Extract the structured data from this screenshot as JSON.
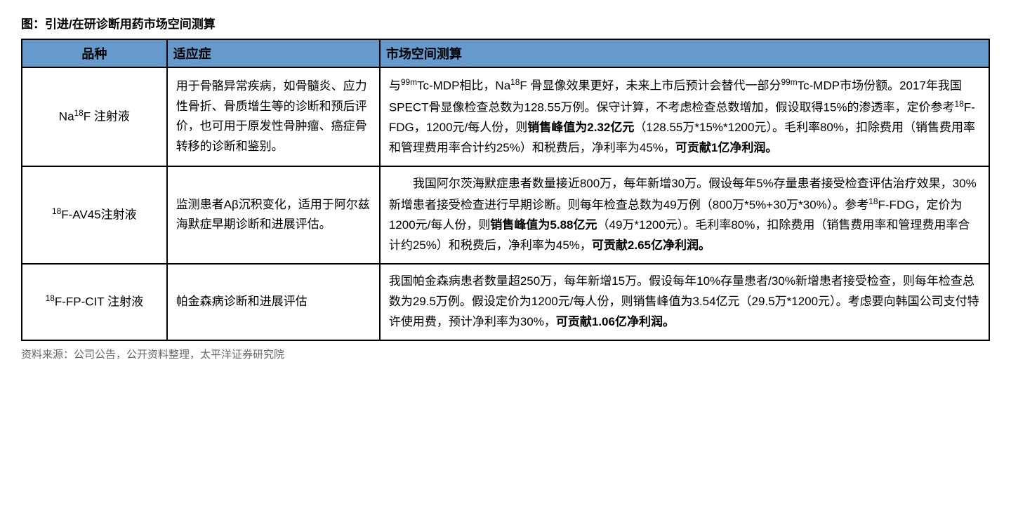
{
  "title": "图：引进/在研诊断用药市场空间测算",
  "header_bg_color": "#6699cc",
  "border_color": "#000000",
  "columns": {
    "product": "品种",
    "indication": "适应症",
    "market": "市场空间测算"
  },
  "rows": [
    {
      "indication": "用于骨骼异常疾病，如骨髓炎、应力性骨折、骨质增生等的诊断和预后评价，也可用于原发性骨肿瘤、癌症骨转移的诊断和鉴别。",
      "market_part1": "Tc-MDP相比，Na",
      "market_part2": "F 骨显像效果更好，未来上市后预计会替代一部分",
      "market_part3": "Tc-MDP市场份额。2017年我国SPECT骨显像检查总数为128.55万例。保守计算，不考虑检查总数增加，假设取得15%的渗透率，定价参考",
      "market_part4": "F-FDG，1200元/每人份，则",
      "market_bold1": "销售峰值为2.32亿元",
      "market_part5": "（128.55万*15%*1200元）。毛利率80%，扣除费用（销售费用率和管理费用率合计约25%）和税费后，净利率为45%，",
      "market_bold2": "可贡献1亿净利润。"
    },
    {
      "indication": "监测患者Aβ沉积变化，适用于阿尔兹海默症早期诊断和进展评估。",
      "market_part1": "我国阿尔茨海默症患者数量接近800万，每年新增30万。假设每年5%存量患者接受检查评估治疗效果，30%新增患者接受检查进行早期诊断。则每年检查总数为49万例（800万*5%+30万*30%）。参考",
      "market_part2": "F-FDG，定价为1200元/每人份，则",
      "market_bold1": "销售峰值为5.88亿元",
      "market_part3": "（49万*1200元）。毛利率80%，扣除费用（销售费用率和管理费用率合计约25%）和税费后，净利率为45%，",
      "market_bold2": "可贡献2.65亿净利润。"
    },
    {
      "indication": "帕金森病诊断和进展评估",
      "market_part1": "我国帕金森病患者数量超250万，每年新增15万。假设每年10%存量患者/30%新增患者接受检查，则每年检查总数为29.5万例。假设定价为1200元/每人份，则销售峰值为3.54亿元（29.5万*1200元）。考虑要向韩国公司支付特许使用费，预计净利率为30%，",
      "market_bold1": "可贡献1.06亿净利润。"
    }
  ],
  "source": "资料来源：公司公告，公开资料整理，太平洋证券研究院"
}
